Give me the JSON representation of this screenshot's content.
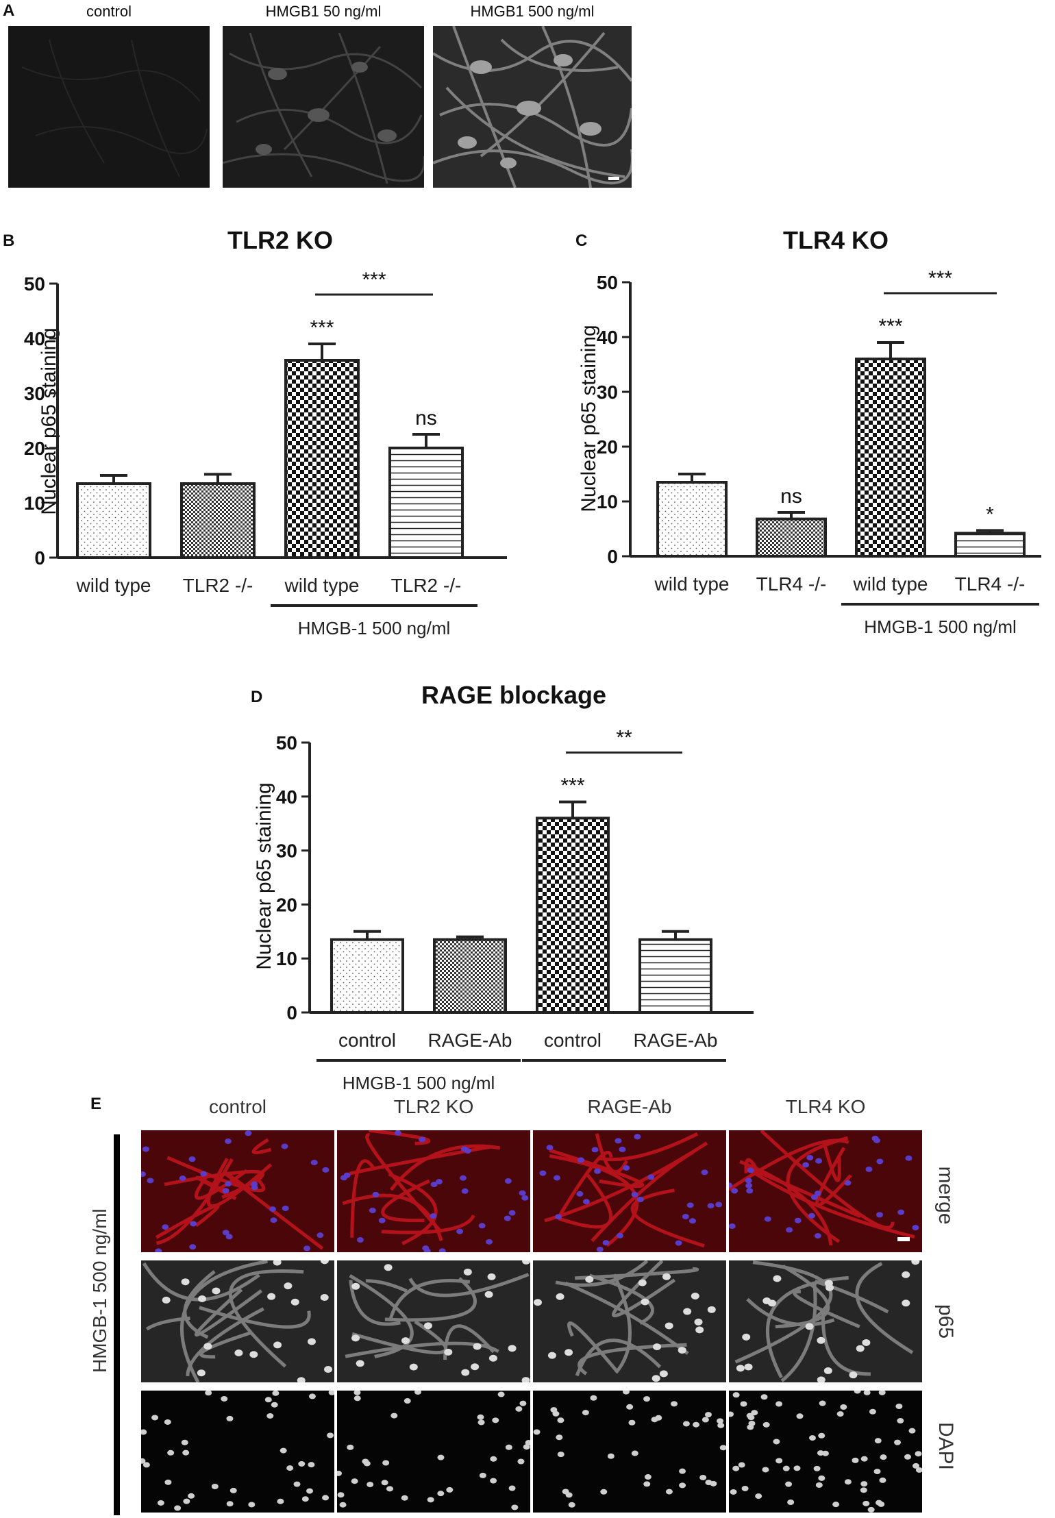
{
  "panel_a": {
    "label": "A",
    "images": [
      {
        "title": "control"
      },
      {
        "title": "HMGB1 50 ng/ml"
      },
      {
        "title": "HMGB1 500 ng/ml"
      }
    ]
  },
  "panel_e": {
    "label": "E",
    "columns": [
      "control",
      "TLR2 KO",
      "RAGE-Ab",
      "TLR4 KO"
    ],
    "rows": [
      "merge",
      "p65",
      "DAPI"
    ],
    "side_label": "HMGB-1 500 ng/ml"
  },
  "colors": {
    "bar_stroke": "#222222",
    "merge_red": "#c0141e",
    "nuclei_blue": "#5a3cc8"
  },
  "chart_data": [
    {
      "panel": "B",
      "type": "bar",
      "title": "TLR2 KO",
      "ylabel": "Nuclear p65 staining",
      "xlabel": "",
      "ylim": [
        0,
        50
      ],
      "yticks": [
        "0",
        "10",
        "20",
        "30",
        "40",
        "50"
      ],
      "categories": [
        "wild type",
        "TLR2 -/-",
        "wild type",
        "TLR2 -/-"
      ],
      "values": [
        13.5,
        13.5,
        36,
        20
      ],
      "errors": [
        1.5,
        1.7,
        3,
        2.5
      ],
      "patterns": [
        "dots",
        "fine-check",
        "check",
        "hlines"
      ],
      "annotations": [
        "",
        "",
        "***",
        "ns"
      ],
      "bracket": {
        "from": 2,
        "to": 3,
        "label": "***"
      },
      "groups": [
        {
          "label": "HMGB-1 500 ng/ml",
          "from": 2,
          "to": 3,
          "position": "below-line"
        }
      ]
    },
    {
      "panel": "C",
      "type": "bar",
      "title": "TLR4 KO",
      "ylabel": "Nuclear p65 staining",
      "xlabel": "",
      "ylim": [
        0,
        50
      ],
      "yticks": [
        "0",
        "10",
        "20",
        "30",
        "40",
        "50"
      ],
      "categories": [
        "wild type",
        "TLR4 -/-",
        "wild type",
        "TLR4 -/-"
      ],
      "values": [
        13.5,
        6.8,
        36,
        4.2
      ],
      "errors": [
        1.5,
        1.2,
        3,
        0.5
      ],
      "patterns": [
        "dots",
        "fine-check",
        "check",
        "hlines"
      ],
      "annotations": [
        "",
        "ns",
        "***",
        "*"
      ],
      "bracket": {
        "from": 2,
        "to": 3,
        "label": "***"
      },
      "groups": [
        {
          "label": "HMGB-1 500 ng/ml",
          "from": 2,
          "to": 3,
          "position": "below-line"
        }
      ]
    },
    {
      "panel": "D",
      "type": "bar",
      "title": "RAGE blockage",
      "ylabel": "Nuclear p65 staining",
      "xlabel": "",
      "ylim": [
        0,
        50
      ],
      "yticks": [
        "0",
        "10",
        "20",
        "30",
        "40",
        "50"
      ],
      "categories": [
        "control",
        "RAGE-Ab",
        "control",
        "RAGE-Ab"
      ],
      "values": [
        13.5,
        13.5,
        36,
        13.5
      ],
      "errors": [
        1.5,
        0.5,
        3,
        1.5
      ],
      "patterns": [
        "dots",
        "fine-check",
        "check",
        "hlines"
      ],
      "annotations": [
        "",
        "",
        "***",
        ""
      ],
      "bracket": {
        "from": 2,
        "to": 3,
        "label": "**"
      },
      "groups": [
        {
          "label": "HMGB-1 500 ng/ml",
          "from": 0,
          "to": 1,
          "position": "below-line"
        },
        {
          "label": "",
          "from": 2,
          "to": 3,
          "position": "below-line"
        }
      ]
    }
  ]
}
